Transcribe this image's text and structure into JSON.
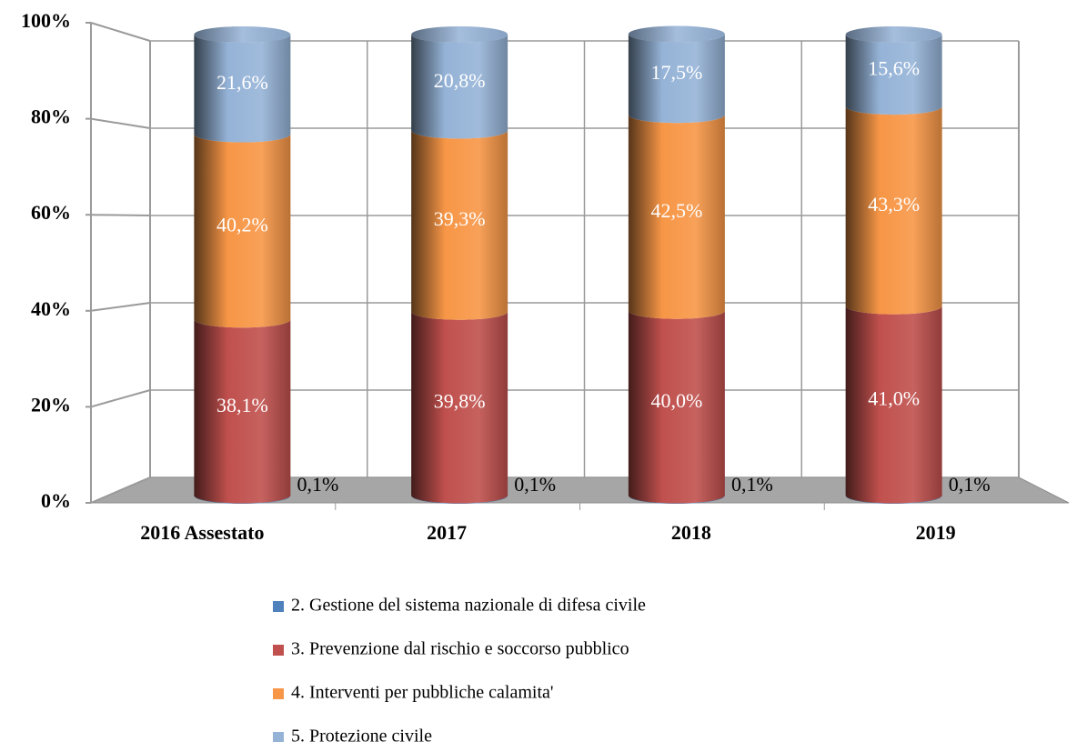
{
  "chart_data": {
    "type": "bar3d_stacked",
    "categories": [
      "2016 Assestato",
      "2017",
      "2018",
      "2019"
    ],
    "series": [
      {
        "name": "2. Gestione del sistema nazionale di difesa civile",
        "color": "#4f81bd",
        "values": [
          0.1,
          0.1,
          0.1,
          0.1
        ],
        "value_labels": [
          "0,1%",
          "0,1%",
          "0,1%",
          "0,1%"
        ]
      },
      {
        "name": "3. Prevenzione dal rischio e soccorso pubblico",
        "color": "#c0504d",
        "values": [
          38.1,
          39.8,
          40.0,
          41.0
        ],
        "value_labels": [
          "38,1%",
          "39,8%",
          "40,0%",
          "41,0%"
        ]
      },
      {
        "name": "4. Interventi per pubbliche calamita'",
        "color": "#f79646",
        "values": [
          40.2,
          39.3,
          42.5,
          43.3
        ],
        "value_labels": [
          "40,2%",
          "39,3%",
          "42,5%",
          "43,3%"
        ]
      },
      {
        "name": "5. Protezione civile",
        "color": "#95b3d7",
        "values": [
          21.6,
          20.8,
          17.5,
          15.6
        ],
        "value_labels": [
          "21,6%",
          "20,8%",
          "17,5%",
          "15,6%"
        ]
      }
    ],
    "ylim": [
      0,
      100
    ],
    "yticks": [
      {
        "value": 0,
        "label": "0%"
      },
      {
        "value": 20,
        "label": "20%"
      },
      {
        "value": 40,
        "label": "40%"
      },
      {
        "value": 60,
        "label": "60%"
      },
      {
        "value": 80,
        "label": "80%"
      },
      {
        "value": 100,
        "label": "100%"
      }
    ],
    "grid": true
  }
}
